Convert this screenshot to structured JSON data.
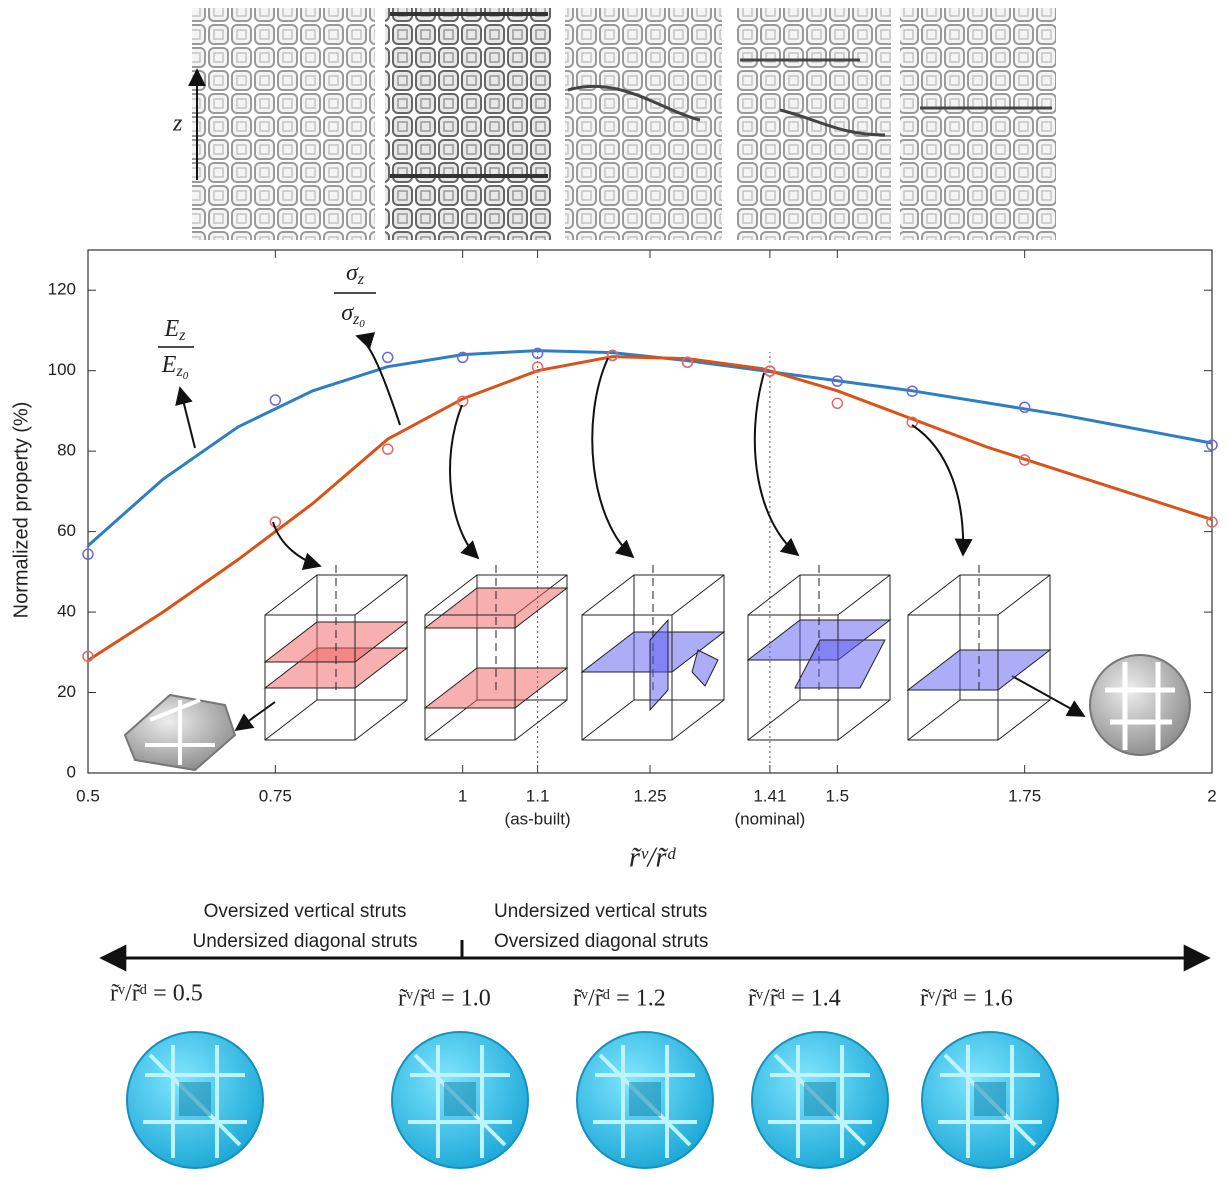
{
  "chart_data": {
    "type": "line",
    "xlabel": "r̃ᵛ/r̃ᵈ",
    "ylabel": "Normalized property (%)",
    "xlim": [
      0.5,
      2
    ],
    "ylim": [
      0,
      130
    ],
    "xticks": [
      0.5,
      0.75,
      1,
      1.1,
      1.25,
      1.41,
      1.5,
      1.75,
      2
    ],
    "yticks": [
      0,
      20,
      40,
      60,
      80,
      100,
      120
    ],
    "tick_notes": [
      {
        "x": 1.1,
        "text": "(as-built)"
      },
      {
        "x": 1.41,
        "text": "(nominal)"
      }
    ],
    "series": [
      {
        "color": "#2e7fc1",
        "style": "line",
        "x": [
          0.5,
          0.6,
          0.7,
          0.8,
          0.9,
          1,
          1.1,
          1.2,
          1.3,
          1.4,
          1.5,
          1.6,
          1.7,
          1.8,
          1.9,
          2
        ],
        "values": [
          56.5,
          73,
          86,
          95,
          101,
          104,
          105,
          104.5,
          102.5,
          100,
          97.5,
          95,
          92,
          89,
          85.5,
          82
        ]
      },
      {
        "color": "#d95319",
        "style": "line",
        "x": [
          0.5,
          0.6,
          0.7,
          0.8,
          0.9,
          1,
          1.1,
          1.2,
          1.3,
          1.4,
          1.5,
          1.6,
          1.7,
          1.8,
          1.9,
          2
        ],
        "values": [
          28,
          40,
          53,
          67,
          83,
          93,
          100,
          103.5,
          103,
          100.5,
          95,
          88,
          81,
          75,
          69,
          63
        ]
      },
      {
        "color": "#6a6ae0",
        "style": "marker",
        "x": [
          0.5,
          0.75,
          0.9,
          1,
          1.1,
          1.2,
          1.3,
          1.41,
          1.5,
          1.6,
          1.75,
          2
        ],
        "values": [
          54.4,
          92.7,
          103.3,
          103.3,
          104.3,
          103.8,
          102.1,
          99.9,
          97.4,
          94.9,
          90.9,
          81.5
        ]
      },
      {
        "color": "#e06a6a",
        "style": "marker",
        "x": [
          0.5,
          0.75,
          0.9,
          1,
          1.1,
          1.2,
          1.3,
          1.41,
          1.5,
          1.6,
          1.75,
          2
        ],
        "values": [
          29,
          62.4,
          80.5,
          92.4,
          100.9,
          103.8,
          102.1,
          99.9,
          91.9,
          87.2,
          77.8,
          62.4
        ]
      }
    ]
  },
  "annotations": {
    "z_label": "z",
    "e_fraction": {
      "num": [
        "E",
        "z"
      ],
      "den": [
        "E",
        "z",
        "0"
      ]
    },
    "sigma_fraction": {
      "num": [
        "σ",
        "z"
      ],
      "den": [
        "σ",
        "z",
        "0"
      ]
    }
  },
  "regions": {
    "left": [
      "Oversized vertical struts",
      "Undersized diagonal struts"
    ],
    "right": [
      "Undersized vertical struts",
      "Oversized diagonal struts"
    ]
  },
  "ratio_labels": [
    "r̃ᵛ/r̃ᵈ = 0.5",
    "r̃ᵛ/r̃ᵈ = 1.0",
    "r̃ᵛ/r̃ᵈ = 1.2",
    "r̃ᵛ/r̃ᵈ = 1.4",
    "r̃ᵛ/r̃ᵈ = 1.6"
  ]
}
